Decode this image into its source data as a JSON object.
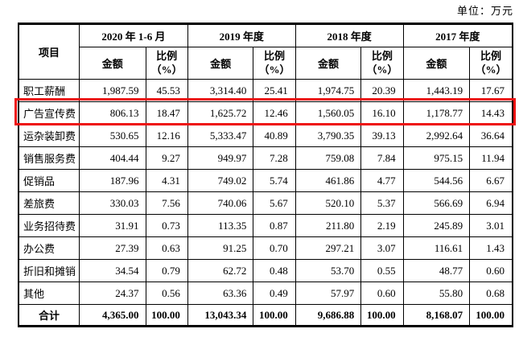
{
  "unit_label": "单位：万元",
  "accent_color": "#ee1111",
  "table": {
    "item_header": "项目",
    "col_groups": [
      {
        "label": "2020 年 1-6 月"
      },
      {
        "label": "2019 年度"
      },
      {
        "label": "2018 年度"
      },
      {
        "label": "2017 年度"
      }
    ],
    "sub_headers": {
      "amount": "金额",
      "ratio_line1": "比例",
      "ratio_line2": "（%）"
    },
    "rows": [
      {
        "label": "职工薪酬",
        "highlight": false,
        "total": false,
        "values": [
          "1,987.59",
          "45.53",
          "3,314.40",
          "25.41",
          "1,974.75",
          "20.39",
          "1,443.19",
          "17.67"
        ]
      },
      {
        "label": "广告宣传费",
        "highlight": true,
        "total": false,
        "values": [
          "806.13",
          "18.47",
          "1,625.72",
          "12.46",
          "1,560.05",
          "16.10",
          "1,178.77",
          "14.43"
        ]
      },
      {
        "label": "运杂装卸费",
        "highlight": false,
        "total": false,
        "values": [
          "530.65",
          "12.16",
          "5,333.47",
          "40.89",
          "3,790.35",
          "39.13",
          "2,992.64",
          "36.64"
        ]
      },
      {
        "label": "销售服务费",
        "highlight": false,
        "total": false,
        "values": [
          "404.44",
          "9.27",
          "949.97",
          "7.28",
          "759.08",
          "7.84",
          "975.15",
          "11.94"
        ]
      },
      {
        "label": "促销品",
        "highlight": false,
        "total": false,
        "values": [
          "187.96",
          "4.31",
          "749.02",
          "5.74",
          "461.86",
          "4.77",
          "544.56",
          "6.67"
        ]
      },
      {
        "label": "差旅费",
        "highlight": false,
        "total": false,
        "values": [
          "330.03",
          "7.56",
          "740.06",
          "5.67",
          "520.10",
          "5.37",
          "566.69",
          "6.94"
        ]
      },
      {
        "label": "业务招待费",
        "highlight": false,
        "total": false,
        "values": [
          "31.91",
          "0.73",
          "113.35",
          "0.87",
          "211.80",
          "2.19",
          "245.89",
          "3.01"
        ]
      },
      {
        "label": "办公费",
        "highlight": false,
        "total": false,
        "values": [
          "27.39",
          "0.63",
          "91.25",
          "0.70",
          "297.21",
          "3.07",
          "116.61",
          "1.43"
        ]
      },
      {
        "label": "折旧和摊销",
        "highlight": false,
        "total": false,
        "values": [
          "34.54",
          "0.79",
          "62.72",
          "0.48",
          "53.70",
          "0.55",
          "48.77",
          "0.60"
        ]
      },
      {
        "label": "其他",
        "highlight": false,
        "total": false,
        "values": [
          "24.37",
          "0.56",
          "63.36",
          "0.49",
          "57.97",
          "0.60",
          "55.80",
          "0.68"
        ]
      },
      {
        "label": "合计",
        "highlight": false,
        "total": true,
        "values": [
          "4,365.00",
          "100.00",
          "13,043.34",
          "100.00",
          "9,686.88",
          "100.00",
          "8,168.07",
          "100.00"
        ]
      }
    ]
  }
}
